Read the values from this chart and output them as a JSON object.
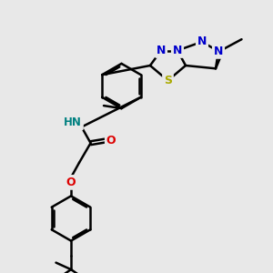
{
  "bg_color": "#e8e8e8",
  "bond_color": "#000000",
  "bond_width": 1.8,
  "atom_colors": {
    "N": "#0000cc",
    "O": "#dd0000",
    "S": "#aaaa00",
    "NH": "#008080",
    "C": "#000000"
  },
  "font_size": 8.5,
  "figsize": [
    3.0,
    3.0
  ],
  "dpi": 100
}
